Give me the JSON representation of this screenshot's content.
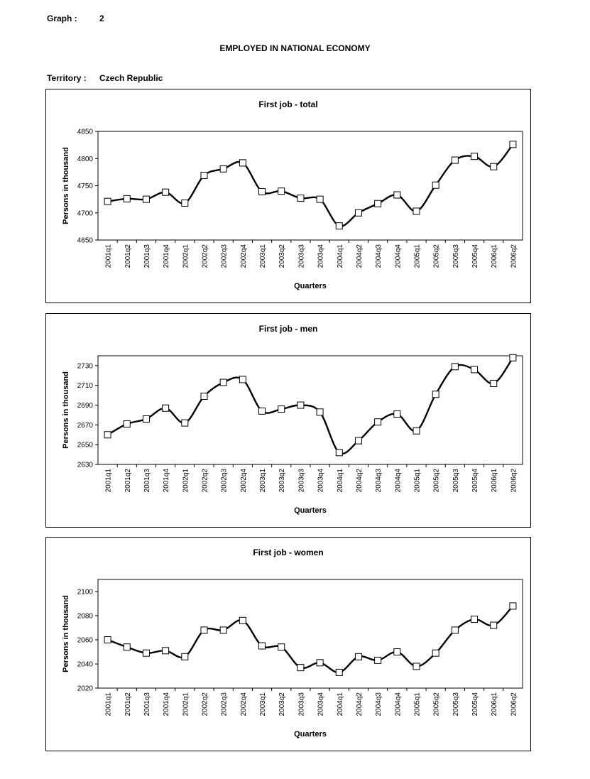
{
  "header": {
    "graph_label": "Graph :",
    "graph_number": "2",
    "title": "EMPLOYED IN NATIONAL ECONOMY",
    "territory_label": "Territory :",
    "territory_value": "Czech Republic"
  },
  "chart_data": [
    {
      "type": "line",
      "title": "First job - total",
      "xlabel": "Quarters",
      "ylabel": "Persons in thousand",
      "ylim": [
        4650,
        4850
      ],
      "yticks": [
        4650,
        4700,
        4750,
        4800,
        4850
      ],
      "grid": false,
      "categories": [
        "2001q1",
        "2001q2",
        "2001q3",
        "2001q4",
        "2002q1",
        "2002q2",
        "2002q3",
        "2002q4",
        "2003q1",
        "2003q2",
        "2003q3",
        "2003q4",
        "2004q1",
        "2004q2",
        "2004q3",
        "2004q4",
        "2005q1",
        "2005q2",
        "2005q3",
        "2005q4",
        "2006q1",
        "2006q2"
      ],
      "values": [
        4721,
        4726,
        4725,
        4738,
        4718,
        4769,
        4781,
        4792,
        4739,
        4740,
        4727,
        4725,
        4676,
        4700,
        4717,
        4733,
        4703,
        4751,
        4797,
        4804,
        4785,
        4826
      ]
    },
    {
      "type": "line",
      "title": "First job - men",
      "xlabel": "Quarters",
      "ylabel": "Persons in thousand",
      "ylim": [
        2630,
        2740
      ],
      "yticks": [
        2630,
        2650,
        2670,
        2690,
        2710,
        2730
      ],
      "grid": false,
      "categories": [
        "2001q1",
        "2001q2",
        "2001q3",
        "2001q4",
        "2002q1",
        "2002q2",
        "2002q3",
        "2002q4",
        "2003q1",
        "2003q2",
        "2003q3",
        "2003q4",
        "2004q1",
        "2004q2",
        "2004q3",
        "2004q4",
        "2005q1",
        "2005q2",
        "2005q3",
        "2005q4",
        "2006q1",
        "2006q2"
      ],
      "values": [
        2660,
        2671,
        2676,
        2687,
        2672,
        2699,
        2713,
        2716,
        2684,
        2686,
        2690,
        2683,
        2642,
        2654,
        2673,
        2681,
        2664,
        2701,
        2729,
        2726,
        2712,
        2738
      ]
    },
    {
      "type": "line",
      "title": "First job - women",
      "xlabel": "Quarters",
      "ylabel": "Persons in thousand",
      "ylim": [
        2020,
        2110
      ],
      "yticks": [
        2020,
        2040,
        2060,
        2080,
        2100
      ],
      "grid": false,
      "categories": [
        "2001q1",
        "2001q2",
        "2001q3",
        "2001q4",
        "2002q1",
        "2002q2",
        "2002q3",
        "2002q4",
        "2003q1",
        "2003q2",
        "2003q3",
        "2003q4",
        "2004q1",
        "2004q2",
        "2004q3",
        "2004q4",
        "2005q1",
        "2005q2",
        "2005q3",
        "2005q4",
        "2006q1",
        "2006q2"
      ],
      "values": [
        2060,
        2054,
        2049,
        2051,
        2046,
        2068,
        2068,
        2076,
        2055,
        2054,
        2037,
        2041,
        2033,
        2046,
        2043,
        2050,
        2038,
        2049,
        2068,
        2077,
        2072,
        2088
      ]
    }
  ]
}
